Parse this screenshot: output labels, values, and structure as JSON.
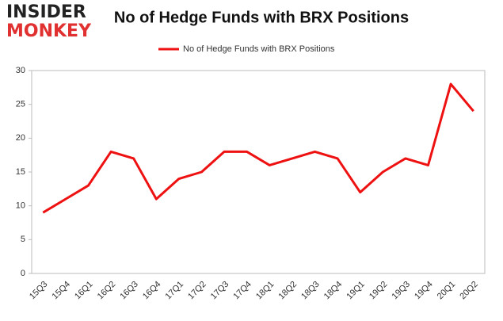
{
  "logo": {
    "line1": "INSIDER",
    "line2": "MONKEY"
  },
  "chart_data": {
    "type": "line",
    "title": "No of Hedge Funds with BRX Positions",
    "categories": [
      "15Q3",
      "15Q4",
      "16Q1",
      "16Q2",
      "16Q3",
      "16Q4",
      "17Q1",
      "17Q2",
      "17Q3",
      "17Q4",
      "18Q1",
      "18Q2",
      "18Q3",
      "18Q4",
      "19Q1",
      "19Q2",
      "19Q3",
      "19Q4",
      "20Q1",
      "20Q2"
    ],
    "series": [
      {
        "name": "No of Hedge Funds with BRX Positions",
        "color": "#ee1111",
        "values": [
          9,
          11,
          13,
          18,
          17,
          11,
          14,
          15,
          18,
          18,
          16,
          17,
          18,
          17,
          12,
          15,
          17,
          16,
          28,
          24
        ]
      }
    ],
    "ylim": [
      0,
      30
    ],
    "yticks": [
      0,
      5,
      10,
      15,
      20,
      25,
      30
    ],
    "legend": "top"
  }
}
